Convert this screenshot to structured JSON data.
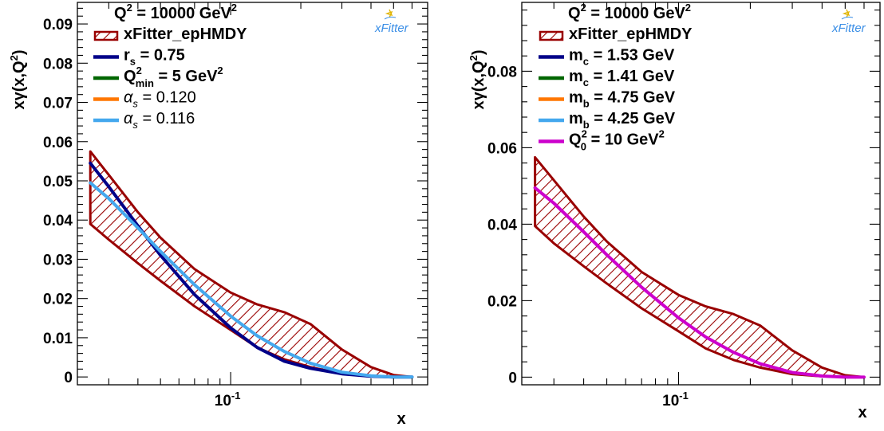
{
  "chart_data": [
    {
      "type": "line",
      "xscale": "log",
      "xlim": [
        0.022,
        0.7
      ],
      "ylim": [
        -0.002,
        0.0955
      ],
      "xlabel": "x",
      "ylabel": "xγ(x,Q2)",
      "xticks": [
        {
          "value": 0.1,
          "label": "10-1"
        }
      ],
      "yticks": [
        {
          "value": 0,
          "label": "0"
        },
        {
          "value": 0.01,
          "label": "0.01"
        },
        {
          "value": 0.02,
          "label": "0.02"
        },
        {
          "value": 0.03,
          "label": "0.03"
        },
        {
          "value": 0.04,
          "label": "0.04"
        },
        {
          "value": 0.05,
          "label": "0.05"
        },
        {
          "value": 0.06,
          "label": "0.06"
        },
        {
          "value": 0.07,
          "label": "0.07"
        },
        {
          "value": 0.08,
          "label": "0.08"
        },
        {
          "value": 0.09,
          "label": "0.09"
        }
      ],
      "legend_title": "Q2 = 10000 GeV2",
      "legend_position": "top-left",
      "band": {
        "name": "xFitter_epHMDY",
        "color": "#990000",
        "x": [
          0.025,
          0.03,
          0.04,
          0.05,
          0.07,
          0.1,
          0.13,
          0.17,
          0.22,
          0.3,
          0.4,
          0.5,
          0.6
        ],
        "upper": [
          0.0575,
          0.0515,
          0.042,
          0.0355,
          0.0275,
          0.0215,
          0.0185,
          0.0165,
          0.0135,
          0.007,
          0.0025,
          0.0005,
          0.0
        ],
        "lower": [
          0.039,
          0.035,
          0.029,
          0.0245,
          0.018,
          0.012,
          0.0075,
          0.0045,
          0.0025,
          0.0008,
          0.0002,
          0.0,
          0.0
        ]
      },
      "series": [
        {
          "name": "rs = 0.75",
          "color": "#000088",
          "width": 4,
          "x": [
            0.025,
            0.03,
            0.04,
            0.05,
            0.07,
            0.1,
            0.13,
            0.17,
            0.22,
            0.3,
            0.4,
            0.5,
            0.6
          ],
          "y": [
            0.0545,
            0.0485,
            0.0385,
            0.031,
            0.021,
            0.0125,
            0.0075,
            0.004,
            0.0022,
            0.0008,
            0.0002,
            0.0,
            0.0
          ]
        },
        {
          "name": "Qmin2 = 5 GeV2",
          "color": "#006600",
          "width": 4,
          "x": [],
          "y": []
        },
        {
          "name": "αs = 0.120",
          "color": "#ff7700",
          "width": 4,
          "x": [],
          "y": []
        },
        {
          "name": "αs = 0.116",
          "color": "#44a8ee",
          "width": 4,
          "x": [
            0.025,
            0.03,
            0.04,
            0.05,
            0.07,
            0.1,
            0.13,
            0.17,
            0.22,
            0.3,
            0.4,
            0.5,
            0.6
          ],
          "y": [
            0.0495,
            0.0455,
            0.038,
            0.032,
            0.0235,
            0.0155,
            0.0105,
            0.0065,
            0.0035,
            0.0012,
            0.0003,
            0.0,
            0.0
          ]
        }
      ]
    },
    {
      "type": "line",
      "xscale": "log",
      "xlim": [
        0.022,
        0.7
      ],
      "ylim": [
        -0.002,
        0.098
      ],
      "xlabel": "x",
      "ylabel": "xγ(x,Q2)",
      "xticks": [
        {
          "value": 0.1,
          "label": "10-1"
        }
      ],
      "yticks": [
        {
          "value": 0,
          "label": "0"
        },
        {
          "value": 0.02,
          "label": "0.02"
        },
        {
          "value": 0.04,
          "label": "0.04"
        },
        {
          "value": 0.06,
          "label": "0.06"
        },
        {
          "value": 0.08,
          "label": "0.08"
        }
      ],
      "legend_title": "Q2 = 10000 GeV2",
      "legend_position": "top-left",
      "band": {
        "name": "xFitter_epHMDY",
        "color": "#990000",
        "x": [
          0.025,
          0.03,
          0.04,
          0.05,
          0.07,
          0.1,
          0.13,
          0.17,
          0.22,
          0.3,
          0.4,
          0.5,
          0.6
        ],
        "upper": [
          0.0575,
          0.0515,
          0.042,
          0.0355,
          0.0275,
          0.0215,
          0.0185,
          0.0165,
          0.0135,
          0.007,
          0.0025,
          0.0005,
          0.0
        ],
        "lower": [
          0.0395,
          0.035,
          0.029,
          0.0245,
          0.018,
          0.012,
          0.0075,
          0.0045,
          0.0025,
          0.0008,
          0.0002,
          0.0,
          0.0
        ]
      },
      "series": [
        {
          "name": "mc = 1.53 GeV",
          "color": "#000088",
          "width": 4,
          "x": [],
          "y": []
        },
        {
          "name": "mc = 1.41 GeV",
          "color": "#006600",
          "width": 4,
          "x": [],
          "y": []
        },
        {
          "name": "mb = 4.75 GeV",
          "color": "#ff7700",
          "width": 4,
          "x": [],
          "y": []
        },
        {
          "name": "mb = 4.25 GeV",
          "color": "#44a8ee",
          "width": 4,
          "x": [],
          "y": []
        },
        {
          "name": "Q02 = 10 GeV2",
          "color": "#cc00cc",
          "width": 4,
          "x": [
            0.025,
            0.03,
            0.04,
            0.05,
            0.07,
            0.1,
            0.13,
            0.17,
            0.22,
            0.3,
            0.4,
            0.5,
            0.6
          ],
          "y": [
            0.0495,
            0.0455,
            0.038,
            0.032,
            0.0235,
            0.0155,
            0.0105,
            0.0065,
            0.0035,
            0.0012,
            0.0003,
            0.0,
            0.0
          ]
        }
      ]
    }
  ],
  "panels": [
    {
      "legend_title": {
        "base": "Q",
        "sup": "2",
        "rest": " = 10000 GeV",
        "sup2": "2"
      },
      "entries": [
        {
          "kind": "band",
          "label": "xFitter_epHMDY"
        },
        {
          "kind": "line",
          "color": "#000088",
          "base": "r",
          "sub": "s",
          "rest": " = 0.75"
        },
        {
          "kind": "line",
          "color": "#006600",
          "base": "Q",
          "sup": "2",
          "sub": "min",
          "rest": " = 5 GeV",
          "sup2": "2"
        },
        {
          "kind": "line",
          "color": "#ff7700",
          "greek": "α",
          "sub": "s",
          "rest": " = 0.120",
          "normal": true
        },
        {
          "kind": "line",
          "color": "#44a8ee",
          "greek": "α",
          "sub": "s",
          "rest": " = 0.116",
          "normal": true
        }
      ],
      "ylabel": {
        "base": "xγ(x,Q",
        "sup": "2",
        "rest": ")"
      },
      "xlabel": "x",
      "logo": "xFitter"
    },
    {
      "legend_title": {
        "base": "Q",
        "sup": "2",
        "rest": " = 10000 GeV",
        "sup2": "2"
      },
      "entries": [
        {
          "kind": "band",
          "label": "xFitter_epHMDY"
        },
        {
          "kind": "line",
          "color": "#000088",
          "base": "m",
          "sub": "c",
          "rest": " = 1.53 GeV"
        },
        {
          "kind": "line",
          "color": "#006600",
          "base": "m",
          "sub": "c",
          "rest": " = 1.41 GeV"
        },
        {
          "kind": "line",
          "color": "#ff7700",
          "base": "m",
          "sub": "b",
          "rest": " = 4.75 GeV"
        },
        {
          "kind": "line",
          "color": "#44a8ee",
          "base": "m",
          "sub": "b",
          "rest": " = 4.25 GeV"
        },
        {
          "kind": "line",
          "color": "#cc00cc",
          "base": "Q",
          "sup": "2",
          "sub": "0",
          "rest": " = 10 GeV",
          "sup2": "2"
        }
      ],
      "ylabel": {
        "base": "xγ(x,Q",
        "sup": "2",
        "rest": ")"
      },
      "xlabel": "x",
      "logo": "xFitter"
    }
  ]
}
